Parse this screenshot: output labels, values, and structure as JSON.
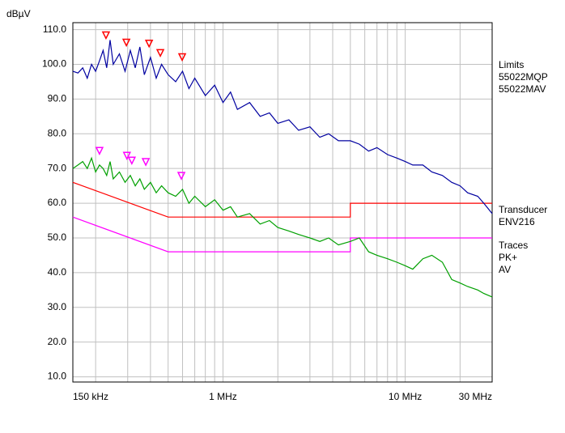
{
  "chart_data": {
    "type": "emc-scan",
    "y_label": "dBµV",
    "xscale": "log",
    "xlim": [
      0.15,
      30
    ],
    "ylim": [
      8.5,
      112
    ],
    "xticks": [
      {
        "value": 0.15,
        "label": "150 kHz"
      },
      {
        "value": 1,
        "label": "1 MHz"
      },
      {
        "value": 10,
        "label": "10 MHz"
      },
      {
        "value": 30,
        "label": "30 MHz"
      }
    ],
    "xminor": [
      0.2,
      0.3,
      0.4,
      0.5,
      0.6,
      0.7,
      0.8,
      0.9,
      2,
      3,
      4,
      5,
      6,
      7,
      8,
      9,
      20
    ],
    "yticks": [
      {
        "value": 10,
        "label": "10.0"
      },
      {
        "value": 20,
        "label": "20.0"
      },
      {
        "value": 30,
        "label": "30.0"
      },
      {
        "value": 40,
        "label": "40.0"
      },
      {
        "value": 50,
        "label": "50.0"
      },
      {
        "value": 60,
        "label": "60.0"
      },
      {
        "value": 70,
        "label": "70.0"
      },
      {
        "value": 80,
        "label": "80.0"
      },
      {
        "value": 90,
        "label": "90.0"
      },
      {
        "value": 100,
        "label": "100.0"
      },
      {
        "value": 110,
        "label": "110.0"
      }
    ],
    "grid": true,
    "legend": {
      "limits_title": "Limits",
      "transducer_title": "Transducer",
      "transducer": "ENV216",
      "traces_title": "Traces"
    },
    "limits": [
      {
        "name": "55022MQP",
        "color": "#ff0000",
        "x": [
          0.15,
          0.5,
          5,
          5,
          30
        ],
        "values": [
          66,
          56,
          56,
          60,
          60
        ]
      },
      {
        "name": "55022MAV",
        "color": "#ff00ff",
        "x": [
          0.15,
          0.5,
          5,
          5,
          30
        ],
        "values": [
          56,
          46,
          46,
          50,
          50
        ]
      }
    ],
    "x": [
      0.15,
      0.16,
      0.17,
      0.18,
      0.19,
      0.2,
      0.21,
      0.22,
      0.23,
      0.24,
      0.25,
      0.27,
      0.29,
      0.31,
      0.33,
      0.35,
      0.37,
      0.4,
      0.43,
      0.46,
      0.5,
      0.55,
      0.6,
      0.65,
      0.7,
      0.8,
      0.9,
      1,
      1.1,
      1.2,
      1.4,
      1.6,
      1.8,
      2,
      2.3,
      2.6,
      3,
      3.4,
      3.8,
      4.3,
      5,
      5.6,
      6.3,
      7,
      8,
      9,
      10,
      11,
      12.5,
      14,
      16,
      18,
      20,
      22,
      25,
      27,
      30
    ],
    "series": [
      {
        "name": "PK+",
        "color": "#0000a0",
        "values": [
          98,
          97.5,
          99,
          96,
          100,
          98,
          101,
          104,
          99,
          107,
          100,
          103,
          98,
          104,
          99,
          105,
          97,
          102,
          96,
          100,
          97,
          95,
          98,
          93,
          96,
          91,
          94,
          89,
          92,
          87,
          89,
          85,
          86,
          83,
          84,
          81,
          82,
          79,
          80,
          78,
          78,
          77,
          75,
          76,
          74,
          73,
          72,
          71,
          71,
          69,
          68,
          66,
          65,
          63,
          62,
          60,
          57
        ]
      },
      {
        "name": "AV",
        "color": "#00a000",
        "values": [
          70,
          71,
          72,
          70,
          73,
          69,
          71,
          70,
          68,
          72,
          67,
          69,
          66,
          68,
          65,
          67,
          64,
          66,
          63,
          65,
          63,
          62,
          64,
          60,
          62,
          59,
          61,
          58,
          59,
          56,
          57,
          54,
          55,
          53,
          52,
          51,
          50,
          49,
          50,
          48,
          49,
          50,
          46,
          45,
          44,
          43,
          42,
          41,
          44,
          45,
          43,
          38,
          37,
          36,
          35,
          34,
          33
        ]
      }
    ],
    "markers": [
      {
        "color": "#ff0000",
        "x": [
          0.228,
          0.295,
          0.393,
          0.453,
          0.597
        ],
        "values": [
          108.4,
          106.3,
          106,
          103.3,
          102.1
        ]
      },
      {
        "color": "#ff00ff",
        "x": [
          0.21,
          0.297,
          0.316,
          0.377,
          0.591
        ],
        "values": [
          75.1,
          73.7,
          72.3,
          71.9,
          67.9
        ]
      }
    ]
  }
}
